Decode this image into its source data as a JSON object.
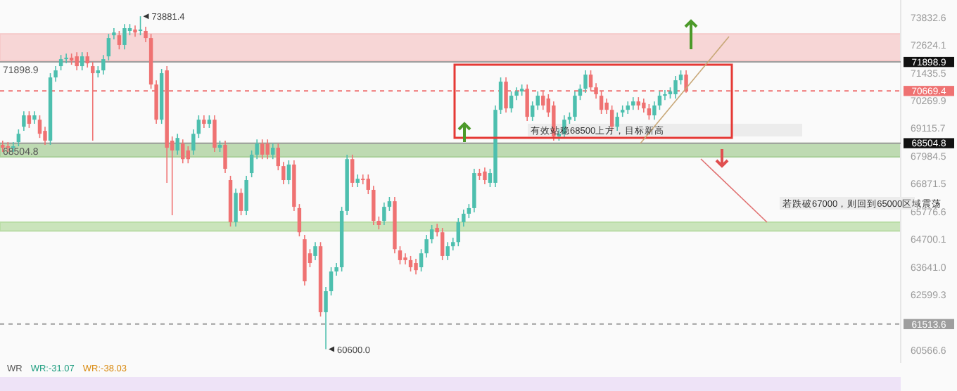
{
  "chart_data": {
    "type": "candlestick",
    "categories": [
      null,
      null,
      null,
      null,
      null,
      null,
      null,
      null,
      null,
      null,
      null,
      null,
      null,
      null,
      null,
      null,
      null,
      null,
      null,
      null,
      null,
      null,
      null,
      null,
      null,
      null,
      null,
      null,
      null,
      null,
      null,
      null,
      null,
      null,
      null,
      null,
      null,
      null,
      null,
      null,
      null,
      null,
      null,
      null,
      null,
      null,
      null,
      null,
      null,
      null,
      null,
      null,
      null,
      null,
      null,
      null,
      null,
      null,
      null,
      null,
      null,
      null,
      null,
      null,
      null,
      null,
      null,
      null,
      null,
      null,
      null,
      null,
      null,
      null,
      null,
      null,
      null,
      null,
      null,
      null,
      null,
      null,
      null,
      null,
      null,
      null,
      null,
      null,
      null,
      null,
      null,
      null,
      null,
      null,
      null,
      null,
      null,
      null,
      null,
      null,
      null,
      null,
      null,
      null,
      null,
      null,
      null,
      null,
      null,
      null,
      null,
      null,
      null,
      null,
      null,
      null,
      null,
      null,
      null,
      null,
      null,
      null,
      null,
      null,
      null,
      null,
      null,
      null,
      null,
      null,
      null,
      null,
      null,
      null,
      null,
      null,
      null,
      null,
      null,
      null,
      null,
      null,
      null,
      null,
      null,
      null,
      null,
      null,
      null,
      null,
      null,
      null,
      null,
      null,
      null,
      null,
      null,
      null,
      null,
      null,
      null,
      null,
      null,
      null,
      null,
      null,
      null,
      null,
      null,
      null
    ],
    "ohlc": [
      [
        68440,
        68610,
        68150,
        68320
      ],
      [
        68380,
        68550,
        68150,
        68320
      ],
      [
        68320,
        68550,
        68150,
        68380
      ],
      [
        68550,
        69070,
        68380,
        68890
      ],
      [
        69180,
        69820,
        69010,
        69650
      ],
      [
        69650,
        69820,
        69130,
        69300
      ],
      [
        69470,
        69820,
        69300,
        69650
      ],
      [
        69470,
        69650,
        68720,
        68890
      ],
      [
        69010,
        69180,
        68440,
        68610
      ],
      [
        68610,
        71420,
        68440,
        71240
      ],
      [
        71240,
        71720,
        71060,
        71540
      ],
      [
        71720,
        72200,
        71540,
        72020
      ],
      [
        72020,
        72260,
        71840,
        72080
      ],
      [
        72080,
        72260,
        71780,
        71960
      ],
      [
        72140,
        72320,
        71540,
        71720
      ],
      [
        71720,
        72320,
        71540,
        72140
      ],
      [
        72140,
        72320,
        71660,
        71840
      ],
      [
        71720,
        71900,
        68610,
        71420
      ],
      [
        71420,
        71720,
        71240,
        71540
      ],
      [
        71540,
        72200,
        71360,
        72020
      ],
      [
        72140,
        73110,
        71960,
        72930
      ],
      [
        73050,
        73360,
        72870,
        73170
      ],
      [
        73050,
        73240,
        72440,
        72630
      ],
      [
        72630,
        73540,
        72440,
        73360
      ],
      [
        73240,
        73540,
        73050,
        73360
      ],
      [
        73300,
        73480,
        72990,
        73170
      ],
      [
        73240,
        73881.4,
        73050,
        73300
      ],
      [
        73240,
        73420,
        72750,
        72930
      ],
      [
        72930,
        73110,
        70760,
        70940
      ],
      [
        70940,
        71120,
        69300,
        69470
      ],
      [
        69470,
        71600,
        69300,
        71420
      ],
      [
        71540,
        71720,
        66910,
        68320
      ],
      [
        68610,
        68780,
        65630,
        68210
      ],
      [
        68210,
        68890,
        68040,
        68720
      ],
      [
        68490,
        68660,
        67690,
        67860
      ],
      [
        68210,
        68380,
        67690,
        67860
      ],
      [
        68210,
        69070,
        68040,
        68890
      ],
      [
        68890,
        69650,
        68720,
        69470
      ],
      [
        69470,
        69650,
        69130,
        69300
      ],
      [
        69300,
        69650,
        69130,
        69470
      ],
      [
        69470,
        69650,
        68150,
        68320
      ],
      [
        68320,
        68610,
        68150,
        68440
      ],
      [
        68440,
        68610,
        67300,
        67470
      ],
      [
        67020,
        67190,
        65190,
        65360
      ],
      [
        65360,
        66680,
        65190,
        66510
      ],
      [
        66510,
        66680,
        65630,
        65800
      ],
      [
        65800,
        67190,
        65630,
        67020
      ],
      [
        67300,
        68210,
        67130,
        68040
      ],
      [
        68040,
        68660,
        67860,
        68490
      ],
      [
        68490,
        68660,
        67860,
        68040
      ],
      [
        68490,
        68660,
        67860,
        68040
      ],
      [
        68040,
        68490,
        67860,
        68320
      ],
      [
        68320,
        68490,
        67410,
        67580
      ],
      [
        67580,
        67750,
        66850,
        67020
      ],
      [
        67020,
        67810,
        66850,
        67640
      ],
      [
        67640,
        67810,
        65800,
        65960
      ],
      [
        65910,
        66070,
        64810,
        64970
      ],
      [
        64700,
        64870,
        62940,
        63100
      ],
      [
        64160,
        64320,
        63630,
        63790
      ],
      [
        64060,
        64590,
        63900,
        64430
      ],
      [
        64430,
        64590,
        61790,
        61950
      ],
      [
        61950,
        62890,
        60600,
        62730
      ],
      [
        62730,
        63630,
        62570,
        63470
      ],
      [
        63470,
        63790,
        63310,
        63630
      ],
      [
        63630,
        65960,
        63470,
        65800
      ],
      [
        65800,
        68040,
        65630,
        67860
      ],
      [
        67860,
        68040,
        66740,
        66910
      ],
      [
        66910,
        67240,
        66740,
        67070
      ],
      [
        67070,
        67240,
        66850,
        67020
      ],
      [
        67070,
        67240,
        66460,
        66630
      ],
      [
        66630,
        66790,
        65250,
        65410
      ],
      [
        65410,
        65580,
        65080,
        65250
      ],
      [
        65410,
        66130,
        65250,
        65960
      ],
      [
        65960,
        66350,
        65800,
        66180
      ],
      [
        66180,
        66350,
        64160,
        64320
      ],
      [
        64270,
        64430,
        63740,
        63900
      ],
      [
        64000,
        64160,
        63740,
        63900
      ],
      [
        63900,
        64060,
        63470,
        63630
      ],
      [
        63790,
        63950,
        63360,
        63520
      ],
      [
        63630,
        64320,
        63470,
        64160
      ],
      [
        64160,
        64870,
        64000,
        64700
      ],
      [
        64700,
        65250,
        64540,
        65080
      ],
      [
        65140,
        65300,
        64810,
        64970
      ],
      [
        64970,
        65140,
        63900,
        64060
      ],
      [
        64060,
        64590,
        63900,
        64430
      ],
      [
        64430,
        64760,
        64270,
        64590
      ],
      [
        64590,
        65520,
        64430,
        65360
      ],
      [
        65360,
        65850,
        65190,
        65690
      ],
      [
        65690,
        66070,
        65520,
        65910
      ],
      [
        65910,
        67470,
        65740,
        67300
      ],
      [
        67300,
        67470,
        67020,
        67190
      ],
      [
        67360,
        67520,
        66850,
        67020
      ],
      [
        66910,
        67470,
        66740,
        67300
      ],
      [
        66910,
        70060,
        66740,
        69880
      ],
      [
        69880,
        71240,
        69710,
        71060
      ],
      [
        71060,
        71240,
        69770,
        69940
      ],
      [
        69940,
        70650,
        69770,
        70470
      ],
      [
        70470,
        70820,
        70290,
        70650
      ],
      [
        70650,
        70940,
        70470,
        70760
      ],
      [
        70760,
        70940,
        69420,
        69590
      ],
      [
        69590,
        70230,
        69420,
        70060
      ],
      [
        70060,
        70650,
        69880,
        70470
      ],
      [
        70470,
        70650,
        69880,
        70060
      ],
      [
        70350,
        70530,
        69590,
        69770
      ],
      [
        70060,
        70230,
        68610,
        68780
      ],
      [
        68780,
        69070,
        68610,
        68890
      ],
      [
        68890,
        69650,
        68720,
        69470
      ],
      [
        69470,
        69770,
        69300,
        69590
      ],
      [
        69590,
        70650,
        69420,
        70470
      ],
      [
        70470,
        70940,
        70290,
        70760
      ],
      [
        70760,
        71540,
        70590,
        71360
      ],
      [
        71360,
        71540,
        70650,
        70820
      ],
      [
        70820,
        71000,
        70350,
        70530
      ],
      [
        70470,
        70650,
        69710,
        69880
      ],
      [
        70180,
        70350,
        69710,
        69880
      ],
      [
        69880,
        70060,
        69010,
        69180
      ],
      [
        69180,
        69770,
        69010,
        69590
      ],
      [
        69770,
        70060,
        69590,
        69880
      ],
      [
        69880,
        70230,
        69710,
        70060
      ],
      [
        70060,
        70410,
        69880,
        70230
      ],
      [
        70230,
        70410,
        69880,
        70060
      ],
      [
        70180,
        70350,
        69770,
        69940
      ],
      [
        69940,
        70120,
        69470,
        69650
      ],
      [
        69650,
        70230,
        69470,
        70060
      ],
      [
        70060,
        70650,
        69880,
        70470
      ],
      [
        70470,
        70710,
        70290,
        70530
      ],
      [
        70530,
        70820,
        70350,
        70650
      ],
      [
        70530,
        71300,
        70350,
        71120
      ],
      [
        71120,
        71540,
        70940,
        71360
      ],
      [
        71360,
        71540,
        70600,
        70669.4
      ],
      null,
      null,
      null,
      null,
      null,
      null,
      null,
      null,
      null,
      null,
      null,
      null,
      null,
      null,
      null,
      null,
      null,
      null,
      null,
      null,
      null,
      null,
      null,
      null,
      null,
      null,
      null,
      null,
      null,
      null,
      null,
      null,
      null,
      null,
      null,
      null,
      null,
      null,
      null,
      null
    ],
    "colors": [
      "#ef7272",
      "#ef7272",
      "#4dbfae",
      "#4dbfae",
      "#4dbfae",
      "#ef7272",
      "#4dbfae",
      "#ef7272",
      "#ef7272",
      "#4dbfae",
      "#4dbfae",
      "#4dbfae",
      "#4dbfae",
      "#ef7272",
      "#ef7272",
      "#4dbfae",
      "#ef7272",
      "#ef7272",
      "#4dbfae",
      "#4dbfae",
      "#4dbfae",
      "#4dbfae",
      "#ef7272",
      "#4dbfae",
      "#4dbfae",
      "#ef7272",
      "#4dbfae",
      "#ef7272",
      "#ef7272",
      "#ef7272",
      "#4dbfae",
      "#ef7272",
      "#ef7272",
      "#4dbfae",
      "#ef7272",
      "#ef7272",
      "#4dbfae",
      "#4dbfae",
      "#ef7272",
      "#4dbfae",
      "#ef7272",
      "#4dbfae",
      "#ef7272",
      "#ef7272",
      "#4dbfae",
      "#ef7272",
      "#4dbfae",
      "#4dbfae",
      "#4dbfae",
      "#ef7272",
      "#ef7272",
      "#4dbfae",
      "#ef7272",
      "#ef7272",
      "#4dbfae",
      "#ef7272",
      "#ef7272",
      "#ef7272",
      "#ef7272",
      "#4dbfae",
      "#ef7272",
      "#4dbfae",
      "#4dbfae",
      "#4dbfae",
      "#4dbfae",
      "#4dbfae",
      "#ef7272",
      "#4dbfae",
      "#ef7272",
      "#ef7272",
      "#ef7272",
      "#ef7272",
      "#4dbfae",
      "#4dbfae",
      "#ef7272",
      "#ef7272",
      "#ef7272",
      "#ef7272",
      "#ef7272",
      "#4dbfae",
      "#4dbfae",
      "#4dbfae",
      "#ef7272",
      "#ef7272",
      "#4dbfae",
      "#4dbfae",
      "#4dbfae",
      "#4dbfae",
      "#4dbfae",
      "#4dbfae",
      "#ef7272",
      "#ef7272",
      "#4dbfae",
      "#4dbfae",
      "#4dbfae",
      "#ef7272",
      "#4dbfae",
      "#4dbfae",
      "#4dbfae",
      "#ef7272",
      "#4dbfae",
      "#4dbfae",
      "#ef7272",
      "#ef7272",
      "#ef7272",
      "#4dbfae",
      "#4dbfae",
      "#4dbfae",
      "#4dbfae",
      "#4dbfae",
      "#4dbfae",
      "#ef7272",
      "#ef7272",
      "#ef7272",
      "#ef7272",
      "#ef7272",
      "#4dbfae",
      "#4dbfae",
      "#4dbfae",
      "#4dbfae",
      "#ef7272",
      "#ef7272",
      "#ef7272",
      "#4dbfae",
      "#4dbfae",
      "#4dbfae",
      "#4dbfae",
      "#4dbfae",
      "#4dbfae",
      "#ef7272",
      null,
      null,
      null,
      null,
      null,
      null,
      null,
      null,
      null,
      null,
      null,
      null,
      null,
      null,
      null,
      null,
      null,
      null,
      null,
      null,
      null,
      null,
      null,
      null,
      null,
      null,
      null,
      null,
      null,
      null,
      null,
      null,
      null,
      null,
      null,
      null,
      null,
      null,
      null,
      null
    ],
    "log": true,
    "ylim": [
      60110,
      74600
    ],
    "yticks": [
      73832.6,
      72624.1,
      71435.5,
      70269.9,
      69115.7,
      67984.5,
      66871.5,
      65776.6,
      {
        "value": 64700.1,
        "label": "64700.1"
      },
      {
        "value": 63641,
        "label": "63641.0"
      },
      62599.3,
      60566.6
    ],
    "ref_lines": [
      {
        "axis": "y",
        "value": 71898.9,
        "label": "71898.9",
        "color": "#9e9e9e",
        "line_style": "solid"
      },
      {
        "axis": "y",
        "value": 68504.8,
        "label": "68504.8",
        "color": "#9e9e9e",
        "line_style": "solid"
      },
      {
        "axis": "y",
        "value": 70669.4,
        "label": "70669.4",
        "color": "#ef7272",
        "line_style": "dashed"
      },
      {
        "axis": "y",
        "value": 61513.6,
        "label": "61513.6",
        "color": "#9e9e9e",
        "line_style": "dashed"
      }
    ],
    "bands": [
      {
        "axis": "y",
        "from": 71960,
        "to": 73110,
        "color": "#f6c9c9"
      },
      {
        "axis": "y",
        "from": 67950,
        "to": 68500,
        "color": "#a9cf9a"
      },
      {
        "axis": "y",
        "from": 65020,
        "to": 65360,
        "color": "#b9dca6"
      }
    ],
    "annotations": [
      "73881.4",
      "60600.0",
      "有效站稳68500上方，目标新高",
      "若跌破67000，则回到65000区域震荡",
      "WR",
      "WR:-31.07",
      "WR:-38.03"
    ]
  }
}
